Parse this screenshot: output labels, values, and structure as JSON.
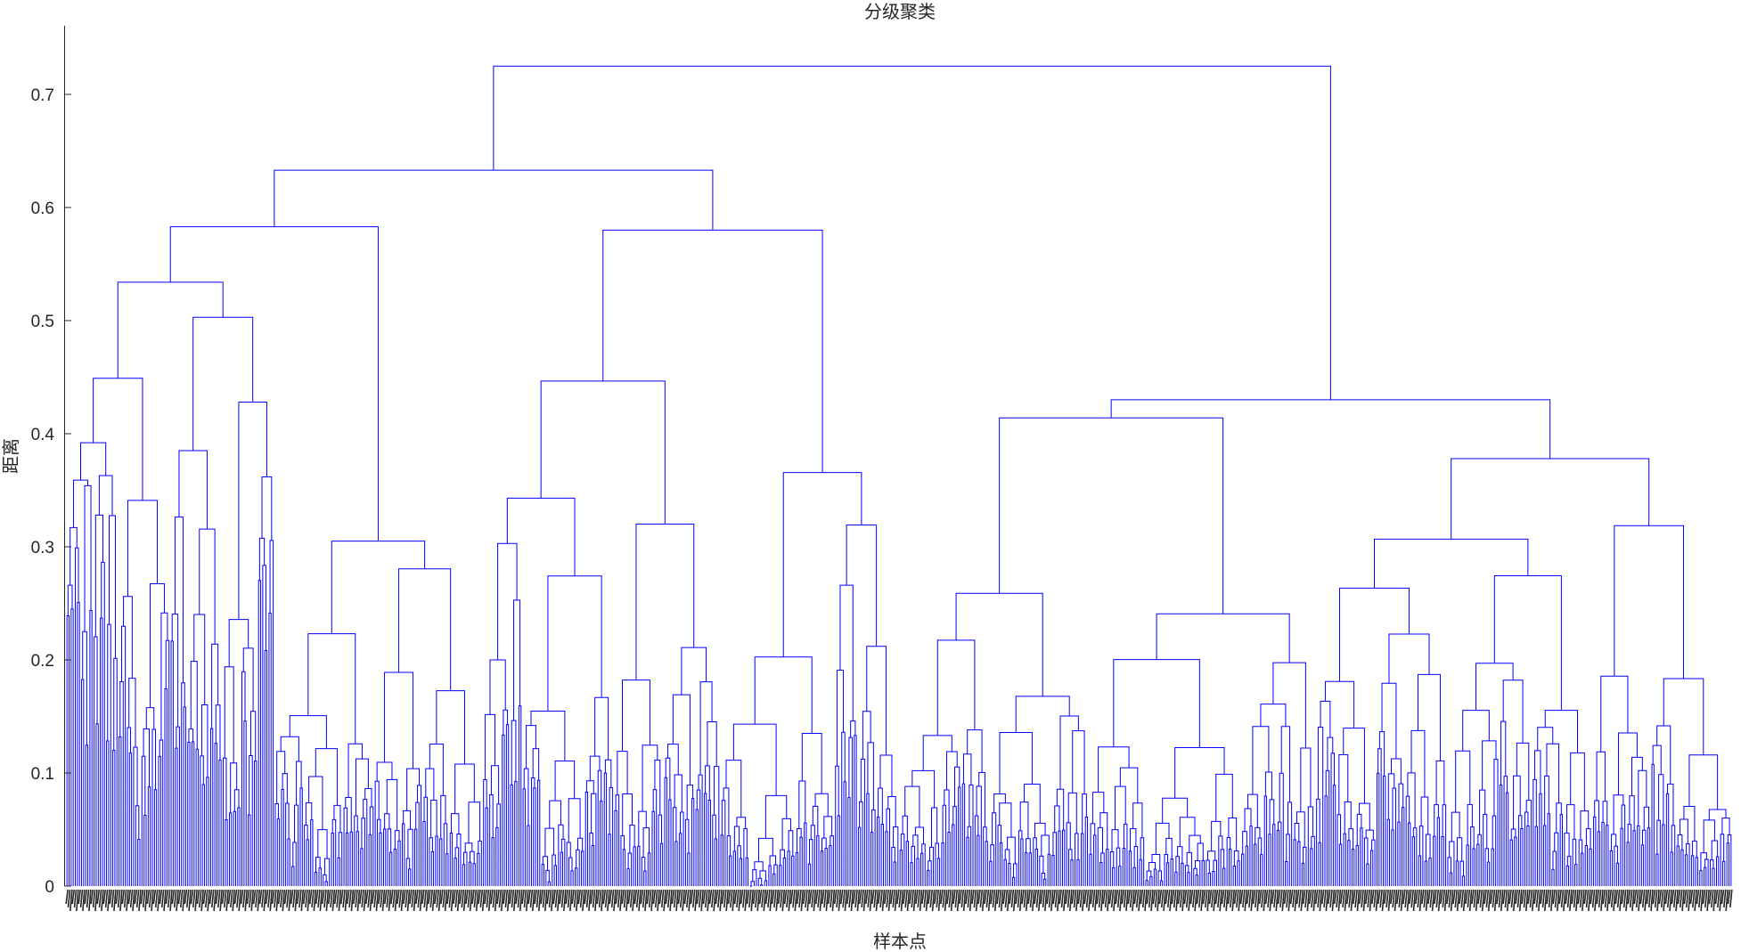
{
  "chart_data": {
    "type": "dendrogram",
    "title": "分级聚类",
    "xlabel": "样本点",
    "ylabel": "距离",
    "ylim": [
      0,
      0.76
    ],
    "yticks": [
      0,
      0.1,
      0.2,
      0.3,
      0.4,
      0.5,
      0.6,
      0.7
    ],
    "ytick_labels": [
      "0",
      "0.1",
      "0.2",
      "0.3",
      "0.4",
      "0.5",
      "0.6",
      "0.7"
    ],
    "line_color": "#0000ff",
    "leaf_count": 800,
    "grid": false,
    "merges": [
      {
        "node": "root",
        "height": 0.725,
        "children": [
          "A",
          "R"
        ]
      },
      {
        "node": "A",
        "height": 0.633,
        "children": [
          "B",
          "P"
        ]
      },
      {
        "node": "B",
        "height": 0.583,
        "children": [
          "C",
          "M"
        ]
      },
      {
        "node": "C",
        "height": 0.534,
        "children": [
          "D",
          "K"
        ]
      },
      {
        "node": "D",
        "height": 0.449,
        "children": [
          "E",
          "H"
        ]
      },
      {
        "node": "E",
        "height": 0.392,
        "children": [
          "F",
          "G"
        ]
      },
      {
        "node": "F",
        "height": 0.359,
        "children": [
          "F1",
          "F2"
        ]
      },
      {
        "node": "F1",
        "height": 0.317,
        "children": [
          "F1a",
          "F1b"
        ]
      },
      {
        "node": "F1a",
        "height": 0.266,
        "children": [
          "F1a1",
          "F1a2"
        ]
      },
      {
        "node": "F1a1",
        "height": 0.239
      },
      {
        "node": "F1a2",
        "height": 0.245
      },
      {
        "node": "F1b",
        "height": 0.299
      },
      {
        "node": "F2",
        "height": 0.354
      },
      {
        "node": "G",
        "height": 0.363
      },
      {
        "node": "H",
        "height": 0.341
      },
      {
        "node": "K",
        "height": 0.503,
        "children": [
          "K1",
          "K2"
        ]
      },
      {
        "node": "K1",
        "height": 0.385
      },
      {
        "node": "K2",
        "height": 0.428
      },
      {
        "node": "M",
        "height": 0.305
      },
      {
        "node": "P",
        "height": 0.58
      },
      {
        "node": "R",
        "height": 0.43,
        "children": [
          "R1",
          "R2"
        ]
      },
      {
        "node": "R1",
        "height": 0.414
      },
      {
        "node": "R2",
        "height": 0.378
      }
    ]
  }
}
